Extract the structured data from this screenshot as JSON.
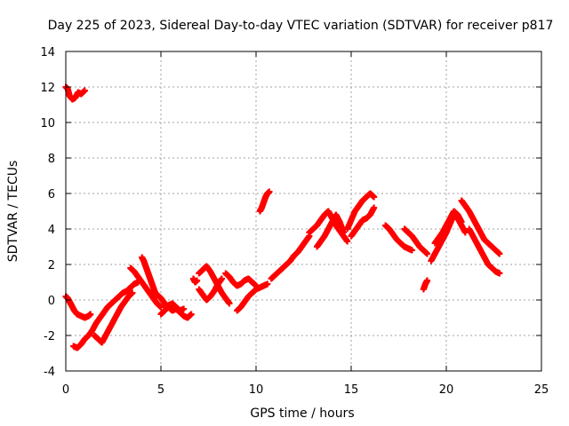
{
  "chart_data": {
    "type": "scatter",
    "title": "Day 225 of 2023, Sidereal Day-to-day VTEC variation (SDTVAR) for receiver p817",
    "xlabel": "GPS time / hours",
    "ylabel": "SDTVAR / TECUs",
    "xlim": [
      0,
      25
    ],
    "ylim": [
      -4,
      14
    ],
    "xticks": [
      "0",
      "5",
      "10",
      "15",
      "20",
      "25"
    ],
    "yticks": [
      "-4",
      "-2",
      "0",
      "2",
      "4",
      "6",
      "8",
      "10",
      "12",
      "14"
    ],
    "grid": true,
    "marker": "plus",
    "color": "#ff0000",
    "series": [
      {
        "name": "SDTVAR",
        "segments": [
          {
            "x": [
              0.0,
              0.1,
              0.2,
              0.35,
              0.5,
              0.65,
              0.8,
              1.0
            ],
            "y": [
              12.0,
              11.9,
              11.5,
              11.3,
              11.4,
              11.7,
              11.6,
              11.8
            ]
          },
          {
            "x": [
              0.0,
              0.1,
              0.2,
              0.3,
              0.45,
              0.6,
              0.8,
              1.0,
              1.2,
              1.3
            ],
            "y": [
              0.2,
              0.1,
              -0.1,
              -0.3,
              -0.6,
              -0.8,
              -0.9,
              -1.0,
              -0.9,
              -0.8
            ]
          },
          {
            "x": [
              0.4,
              0.6,
              0.8,
              1.0,
              1.2,
              1.4,
              1.6,
              1.8,
              2.0,
              2.2,
              2.4,
              2.6,
              2.8,
              3.0,
              3.2,
              3.4,
              3.6,
              3.8
            ],
            "y": [
              -2.6,
              -2.7,
              -2.5,
              -2.2,
              -2.0,
              -1.7,
              -1.3,
              -1.0,
              -0.7,
              -0.4,
              -0.2,
              0.0,
              0.2,
              0.4,
              0.5,
              0.7,
              0.9,
              1.0
            ]
          },
          {
            "x": [
              1.5,
              1.7,
              1.9,
              2.1,
              2.3,
              2.5,
              2.7,
              2.9,
              3.1,
              3.3,
              3.5
            ],
            "y": [
              -2.0,
              -2.2,
              -2.4,
              -2.0,
              -1.6,
              -1.2,
              -0.8,
              -0.4,
              -0.1,
              0.2,
              0.4
            ]
          },
          {
            "x": [
              3.4,
              3.6,
              3.8,
              4.0,
              4.2,
              4.4,
              4.6,
              4.8,
              5.0
            ],
            "y": [
              1.8,
              1.6,
              1.3,
              1.0,
              0.7,
              0.4,
              0.1,
              -0.2,
              -0.4
            ]
          },
          {
            "x": [
              4.0,
              4.1,
              4.2,
              4.3,
              4.4,
              4.5,
              4.6,
              4.7
            ],
            "y": [
              2.4,
              2.2,
              1.9,
              1.6,
              1.3,
              1.0,
              0.7,
              0.4
            ]
          },
          {
            "x": [
              4.8,
              5.0,
              5.2,
              5.4,
              5.6,
              5.8,
              6.0,
              6.2,
              6.4,
              6.6
            ],
            "y": [
              0.3,
              0.1,
              -0.2,
              -0.4,
              -0.6,
              -0.5,
              -0.7,
              -0.9,
              -1.0,
              -0.8
            ]
          },
          {
            "x": [
              5.0,
              5.2,
              5.4,
              5.6,
              5.8,
              6.0,
              6.2
            ],
            "y": [
              -0.8,
              -0.6,
              -0.3,
              -0.2,
              -0.4,
              -0.6,
              -0.5
            ]
          },
          {
            "x": [
              6.7,
              6.8,
              6.9
            ],
            "y": [
              1.2,
              1.0,
              1.1
            ]
          },
          {
            "x": [
              7.0,
              7.2,
              7.4,
              7.6,
              7.8,
              8.0,
              8.2,
              8.4,
              8.6
            ],
            "y": [
              1.5,
              1.7,
              1.9,
              1.6,
              1.2,
              0.8,
              0.4,
              0.1,
              -0.2
            ]
          },
          {
            "x": [
              7.0,
              7.2,
              7.4,
              7.6,
              7.8,
              8.0,
              8.2
            ],
            "y": [
              0.6,
              0.3,
              0.0,
              0.2,
              0.5,
              0.9,
              1.2
            ]
          },
          {
            "x": [
              8.4,
              8.6,
              8.8,
              9.0,
              9.2,
              9.4,
              9.6,
              9.8,
              10.0
            ],
            "y": [
              1.5,
              1.3,
              1.0,
              0.8,
              0.9,
              1.1,
              1.2,
              1.0,
              0.8
            ]
          },
          {
            "x": [
              9.0,
              9.2,
              9.4,
              9.6,
              9.8,
              10.0,
              10.2,
              10.4,
              10.6
            ],
            "y": [
              -0.6,
              -0.4,
              -0.1,
              0.2,
              0.4,
              0.6,
              0.7,
              0.8,
              0.9
            ]
          },
          {
            "x": [
              10.2,
              10.3,
              10.4,
              10.5,
              10.6,
              10.7
            ],
            "y": [
              5.0,
              5.2,
              5.5,
              5.8,
              6.0,
              6.1
            ]
          },
          {
            "x": [
              10.8,
              11.0,
              11.2,
              11.4,
              11.6,
              11.8,
              12.0,
              12.2,
              12.4,
              12.6,
              12.8
            ],
            "y": [
              1.2,
              1.4,
              1.6,
              1.8,
              2.0,
              2.2,
              2.5,
              2.7,
              3.0,
              3.3,
              3.6
            ]
          },
          {
            "x": [
              12.8,
              13.0,
              13.2,
              13.4,
              13.6,
              13.8,
              14.0,
              14.2,
              14.4,
              14.6,
              14.8
            ],
            "y": [
              3.8,
              4.0,
              4.2,
              4.5,
              4.8,
              5.0,
              4.6,
              4.2,
              3.9,
              3.6,
              3.3
            ]
          },
          {
            "x": [
              13.2,
              13.4,
              13.6,
              13.8,
              14.0,
              14.2,
              14.4,
              14.6
            ],
            "y": [
              3.0,
              3.3,
              3.6,
              4.0,
              4.4,
              4.8,
              4.4,
              3.8
            ]
          },
          {
            "x": [
              14.8,
              15.0,
              15.2,
              15.4,
              15.6,
              15.8,
              16.0,
              16.2
            ],
            "y": [
              4.0,
              4.5,
              5.0,
              5.3,
              5.6,
              5.8,
              6.0,
              5.8
            ]
          },
          {
            "x": [
              15.0,
              15.2,
              15.4,
              15.6,
              15.8,
              16.0,
              16.2
            ],
            "y": [
              3.6,
              3.9,
              4.2,
              4.5,
              4.6,
              4.8,
              5.2
            ]
          },
          {
            "x": [
              16.8,
              17.0,
              17.2,
              17.4,
              17.6,
              17.8,
              18.0,
              18.2
            ],
            "y": [
              4.2,
              4.0,
              3.7,
              3.4,
              3.2,
              3.0,
              2.9,
              2.8
            ]
          },
          {
            "x": [
              17.8,
              18.0,
              18.2,
              18.4,
              18.6,
              18.8,
              19.0
            ],
            "y": [
              4.0,
              3.8,
              3.6,
              3.3,
              3.0,
              2.8,
              2.6
            ]
          },
          {
            "x": [
              18.8,
              18.9,
              19.0
            ],
            "y": [
              0.6,
              0.9,
              1.1
            ]
          },
          {
            "x": [
              19.2,
              19.4,
              19.6,
              19.8,
              20.0,
              20.2,
              20.4,
              20.6,
              20.8,
              21.0
            ],
            "y": [
              2.2,
              2.6,
              3.0,
              3.4,
              3.8,
              4.3,
              4.8,
              4.6,
              4.2,
              3.8
            ]
          },
          {
            "x": [
              19.4,
              19.6,
              19.8,
              20.0,
              20.2,
              20.4,
              20.6,
              20.8
            ],
            "y": [
              3.2,
              3.5,
              3.8,
              4.2,
              4.6,
              5.0,
              4.8,
              4.4
            ]
          },
          {
            "x": [
              20.8,
              21.0,
              21.2,
              21.4,
              21.6,
              21.8,
              22.0,
              22.2,
              22.4,
              22.6,
              22.8
            ],
            "y": [
              5.6,
              5.3,
              5.0,
              4.6,
              4.2,
              3.8,
              3.4,
              3.2,
              3.0,
              2.8,
              2.6
            ]
          },
          {
            "x": [
              21.2,
              21.4,
              21.6,
              21.8,
              22.0,
              22.2,
              22.4,
              22.6,
              22.8
            ],
            "y": [
              4.0,
              3.6,
              3.2,
              2.8,
              2.4,
              2.0,
              1.8,
              1.6,
              1.5
            ]
          }
        ]
      }
    ]
  }
}
